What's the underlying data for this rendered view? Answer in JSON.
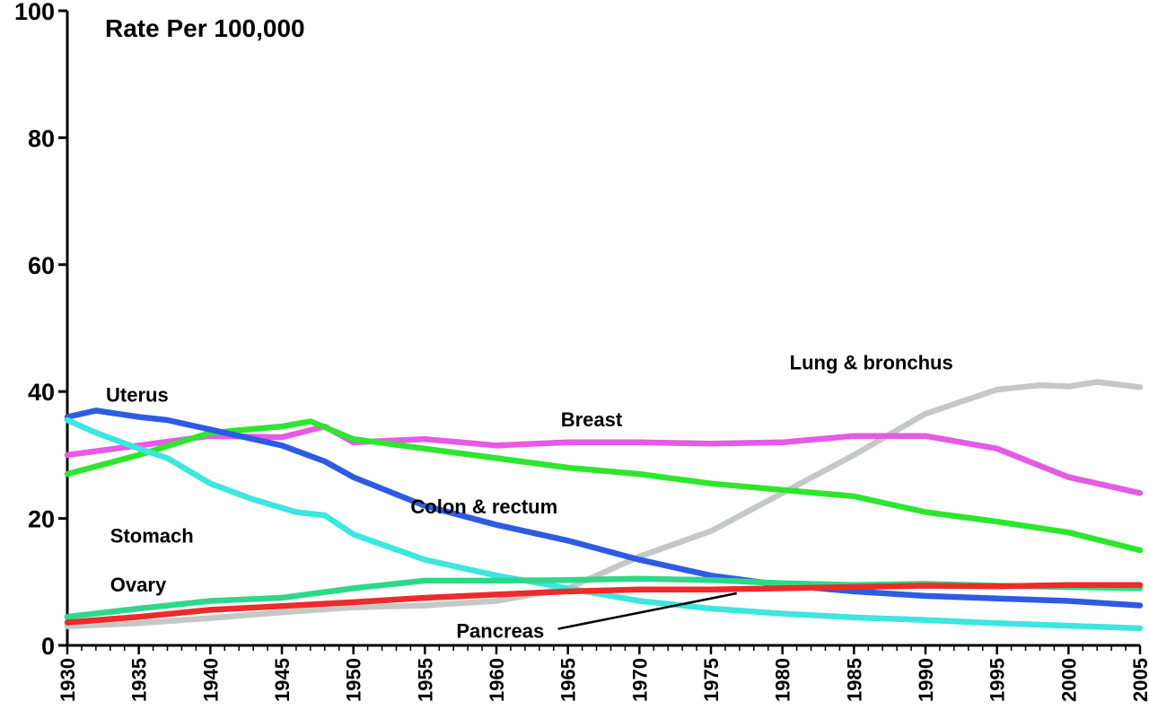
{
  "chart_data": {
    "type": "line",
    "title": "Rate Per 100,000",
    "xlabel": "",
    "ylabel": "",
    "xlim": [
      1930,
      2005
    ],
    "ylim": [
      0,
      100
    ],
    "y_ticks": [
      "0",
      "20",
      "40",
      "60",
      "80",
      "100"
    ],
    "x_ticks": [
      "1930",
      "1935",
      "1940",
      "1945",
      "1950",
      "1955",
      "1960",
      "1965",
      "1970",
      "1975",
      "1980",
      "1985",
      "1990",
      "1995",
      "2000",
      "2005"
    ],
    "grid": false,
    "legend": "none (series labeled inline)",
    "series": [
      {
        "name": "Lung & bronchus",
        "color": "#c4c9c6",
        "points": [
          [
            1930,
            3
          ],
          [
            1935,
            3.5
          ],
          [
            1940,
            4.3
          ],
          [
            1945,
            5.2
          ],
          [
            1950,
            6
          ],
          [
            1955,
            6.3
          ],
          [
            1960,
            7
          ],
          [
            1965,
            9
          ],
          [
            1970,
            14
          ],
          [
            1975,
            18
          ],
          [
            1980,
            24
          ],
          [
            1985,
            30
          ],
          [
            1990,
            36.5
          ],
          [
            1995,
            40.3
          ],
          [
            1998,
            41
          ],
          [
            2000,
            40.8
          ],
          [
            2002,
            41.5
          ],
          [
            2005,
            40.7
          ]
        ]
      },
      {
        "name": "Breast",
        "color": "#e65ae6",
        "points": [
          [
            1930,
            30
          ],
          [
            1935,
            31.5
          ],
          [
            1940,
            33
          ],
          [
            1945,
            32.8
          ],
          [
            1948,
            34.5
          ],
          [
            1950,
            32
          ],
          [
            1955,
            32.5
          ],
          [
            1960,
            31.5
          ],
          [
            1965,
            32
          ],
          [
            1970,
            32
          ],
          [
            1975,
            31.8
          ],
          [
            1980,
            32
          ],
          [
            1985,
            33
          ],
          [
            1990,
            33
          ],
          [
            1995,
            31
          ],
          [
            2000,
            26.5
          ],
          [
            2005,
            24
          ]
        ]
      },
      {
        "name": "Colon & rectum",
        "color": "#2ee62e",
        "points": [
          [
            1930,
            27
          ],
          [
            1935,
            30
          ],
          [
            1940,
            33.5
          ],
          [
            1945,
            34.5
          ],
          [
            1947,
            35.3
          ],
          [
            1950,
            32.5
          ],
          [
            1955,
            31
          ],
          [
            1960,
            29.5
          ],
          [
            1965,
            28
          ],
          [
            1970,
            27
          ],
          [
            1975,
            25.5
          ],
          [
            1980,
            24.5
          ],
          [
            1985,
            23.5
          ],
          [
            1990,
            21
          ],
          [
            1995,
            19.5
          ],
          [
            2000,
            17.8
          ],
          [
            2005,
            15
          ]
        ]
      },
      {
        "name": "Uterus",
        "color": "#2d5be3",
        "points": [
          [
            1930,
            36
          ],
          [
            1932,
            37
          ],
          [
            1935,
            36
          ],
          [
            1937,
            35.5
          ],
          [
            1940,
            34
          ],
          [
            1945,
            31.5
          ],
          [
            1948,
            29
          ],
          [
            1950,
            26.5
          ],
          [
            1955,
            22
          ],
          [
            1960,
            19
          ],
          [
            1965,
            16.5
          ],
          [
            1970,
            13.5
          ],
          [
            1975,
            11
          ],
          [
            1980,
            9.5
          ],
          [
            1985,
            8.5
          ],
          [
            1990,
            7.8
          ],
          [
            1995,
            7.4
          ],
          [
            2000,
            7
          ],
          [
            2005,
            6.3
          ]
        ]
      },
      {
        "name": "Stomach",
        "color": "#3de6de",
        "points": [
          [
            1930,
            35.5
          ],
          [
            1932,
            33.5
          ],
          [
            1935,
            31
          ],
          [
            1937,
            29.5
          ],
          [
            1940,
            25.5
          ],
          [
            1943,
            23
          ],
          [
            1946,
            21
          ],
          [
            1948,
            20.5
          ],
          [
            1950,
            17.5
          ],
          [
            1955,
            13.5
          ],
          [
            1960,
            11
          ],
          [
            1965,
            9
          ],
          [
            1970,
            7
          ],
          [
            1975,
            5.8
          ],
          [
            1980,
            5
          ],
          [
            1985,
            4.4
          ],
          [
            1990,
            4
          ],
          [
            1995,
            3.5
          ],
          [
            2000,
            3.1
          ],
          [
            2005,
            2.7
          ]
        ]
      },
      {
        "name": "Ovary",
        "color": "#2ed88a",
        "points": [
          [
            1930,
            4.5
          ],
          [
            1935,
            5.8
          ],
          [
            1940,
            7
          ],
          [
            1945,
            7.5
          ],
          [
            1950,
            9
          ],
          [
            1955,
            10.2
          ],
          [
            1960,
            10.2
          ],
          [
            1965,
            10.3
          ],
          [
            1970,
            10.5
          ],
          [
            1975,
            10.3
          ],
          [
            1980,
            9.8
          ],
          [
            1985,
            9.5
          ],
          [
            1990,
            9.7
          ],
          [
            1995,
            9.4
          ],
          [
            2000,
            9.2
          ],
          [
            2005,
            9
          ]
        ]
      },
      {
        "name": "Pancreas",
        "color": "#ee2a2a",
        "points": [
          [
            1930,
            3.6
          ],
          [
            1935,
            4.5
          ],
          [
            1940,
            5.6
          ],
          [
            1945,
            6.2
          ],
          [
            1950,
            6.8
          ],
          [
            1955,
            7.5
          ],
          [
            1960,
            8
          ],
          [
            1965,
            8.5
          ],
          [
            1970,
            8.8
          ],
          [
            1975,
            8.8
          ],
          [
            1980,
            9
          ],
          [
            1985,
            9.2
          ],
          [
            1990,
            9.4
          ],
          [
            1995,
            9.3
          ],
          [
            2000,
            9.5
          ],
          [
            2005,
            9.5
          ]
        ]
      }
    ],
    "labels": [
      {
        "text": "Lung & bronchus",
        "series": "Lung & bronchus"
      },
      {
        "text": "Breast",
        "series": "Breast"
      },
      {
        "text": "Colon & rectum",
        "series": "Colon & rectum"
      },
      {
        "text": "Uterus",
        "series": "Uterus"
      },
      {
        "text": "Stomach",
        "series": "Stomach"
      },
      {
        "text": "Ovary",
        "series": "Ovary"
      },
      {
        "text": "Pancreas",
        "series": "Pancreas"
      }
    ]
  }
}
